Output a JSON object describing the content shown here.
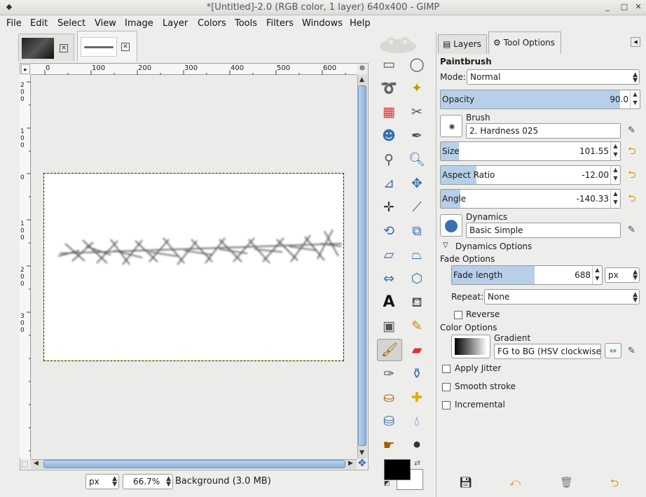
{
  "window": {
    "title": "*[Untitled]-2.0 (RGB color, 1 layer) 640x400 - GIMP",
    "menu_icon": "menu-icon",
    "minimize_icon": "minimize-icon",
    "maximize_icon": "maximize-icon",
    "close_icon": "close-icon"
  },
  "menubar": {
    "items": [
      "File",
      "Edit",
      "Select",
      "View",
      "Image",
      "Layer",
      "Colors",
      "Tools",
      "Filters",
      "Windows",
      "Help"
    ]
  },
  "rulers": {
    "h_ticks": [
      "0",
      "100",
      "200",
      "300",
      "400",
      "500",
      "600"
    ],
    "v_ticks": [
      "2 0 0",
      "1 0 0",
      "0",
      "1 0 0",
      "2 0 0",
      "3 0 0"
    ]
  },
  "statusbar": {
    "unit": "px",
    "zoom": "66.7%",
    "layer_info": "Background (3.0 MB)"
  },
  "dock": {
    "tabs": [
      "Layers",
      "Tool Options"
    ],
    "tool_name": "Paintbrush",
    "mode_label": "Mode:",
    "mode_value": "Normal",
    "opacity": {
      "label": "Opacity",
      "value": "90.0",
      "fraction": 0.9
    },
    "brush_label": "Brush",
    "brush_value": "2. Hardness 025",
    "size": {
      "label": "Size",
      "value": "101.55",
      "fraction": 0.1
    },
    "aspect": {
      "label": "Aspect Ratio",
      "value": "-12.00",
      "fraction": 0.2
    },
    "angle": {
      "label": "Angle",
      "value": "-140.33",
      "fraction": 0.11
    },
    "dynamics_label": "Dynamics",
    "dynamics_value": "Basic Simple",
    "dynamics_options_label": "Dynamics Options",
    "fade_options_label": "Fade Options",
    "fade_length": {
      "label": "Fade length",
      "value": "688",
      "fraction": 0.55
    },
    "fade_unit": "px",
    "repeat_label": "Repeat:",
    "repeat_value": "None",
    "reverse_label": "Reverse",
    "color_options_label": "Color Options",
    "gradient_label": "Gradient",
    "gradient_value": "FG to BG (HSV clockwise hue)",
    "apply_jitter_label": "Apply Jitter",
    "smooth_stroke_label": "Smooth stroke",
    "incremental_label": "Incremental"
  },
  "colors": {
    "foreground": "#000000",
    "background": "#ffffff",
    "accent": "#b8cfe9"
  }
}
